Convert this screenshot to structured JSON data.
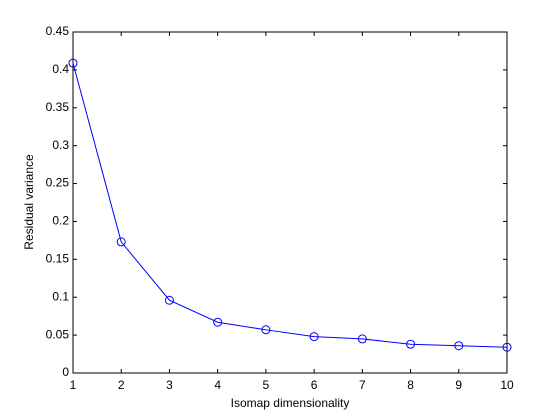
{
  "chart_data": {
    "type": "line",
    "x_label": "Isomap dimensionality",
    "y_label": "Residual variance",
    "x": [
      1,
      2,
      3,
      4,
      5,
      6,
      7,
      8,
      9,
      10
    ],
    "series": [
      {
        "color": "#0000ff",
        "marker": "circle",
        "values": [
          0.409,
          0.173,
          0.096,
          0.067,
          0.057,
          0.048,
          0.045,
          0.038,
          0.036,
          0.034
        ]
      }
    ],
    "xlim": [
      1,
      10
    ],
    "xticks": [
      1,
      2,
      3,
      4,
      5,
      6,
      7,
      8,
      9,
      10
    ],
    "ylim": [
      0,
      0.45
    ],
    "yticks": [
      0,
      0.05,
      0.1,
      0.15,
      0.2,
      0.25,
      0.3,
      0.35,
      0.4,
      0.45
    ],
    "grid": false
  }
}
